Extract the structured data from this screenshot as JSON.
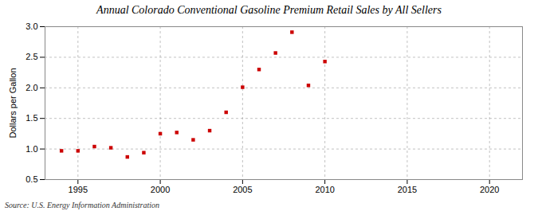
{
  "chart_data": {
    "type": "scatter",
    "title": "Annual Colorado Conventional Gasoline Premium Retail Sales by All Sellers",
    "ylabel": "Dollars per Gallon",
    "source": "Source: U.S. Energy Information Administration",
    "x": [
      1994,
      1995,
      1996,
      1997,
      1998,
      1999,
      2000,
      2001,
      2002,
      2003,
      2004,
      2005,
      2006,
      2007,
      2008,
      2009,
      2010
    ],
    "values": [
      0.97,
      0.97,
      1.04,
      1.02,
      0.87,
      0.94,
      1.25,
      1.27,
      1.15,
      1.3,
      1.6,
      2.01,
      2.3,
      2.57,
      2.91,
      2.04,
      2.43
    ],
    "color": "#cc0000",
    "marker": "square",
    "xlim": [
      1993,
      2022
    ],
    "ylim": [
      0.5,
      3.0
    ],
    "xticks": [
      1995,
      2000,
      2005,
      2010,
      2015,
      2020
    ],
    "yticks": [
      0.5,
      {
        "value": 1.0,
        "label": "1.0"
      },
      1.5,
      {
        "value": 2.0,
        "label": "2.0"
      },
      2.5,
      {
        "value": 3.0,
        "label": "3.0"
      }
    ],
    "grid": true
  }
}
